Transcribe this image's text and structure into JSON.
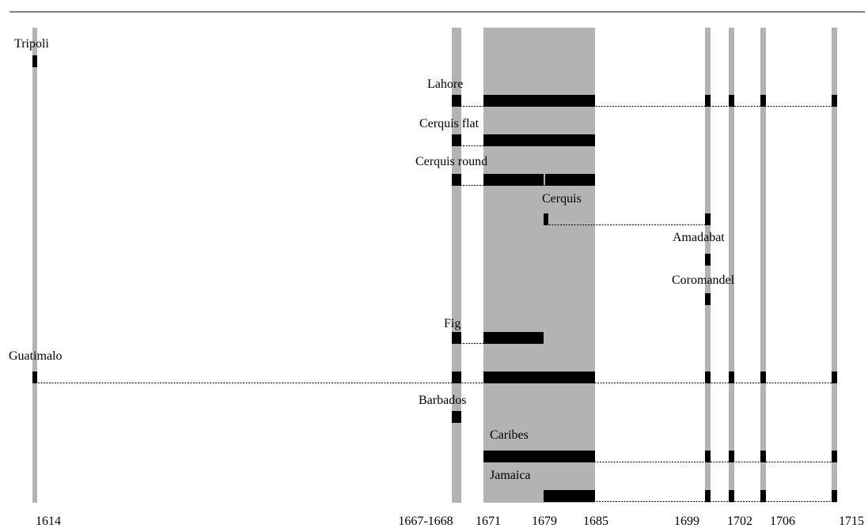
{
  "chart_data": {
    "type": "timeline",
    "colors": {
      "band": "#b3b3b3",
      "mark": "#000000",
      "rule": "#000000"
    },
    "sample_years": [
      "1614",
      "1667-1668",
      "1671",
      "1679",
      "1685",
      "1699",
      "1702",
      "1706",
      "1715"
    ],
    "highlight_period": {
      "from": "1671",
      "to": "1685"
    },
    "series": [
      {
        "name": "Tripoli",
        "present": [
          "1614"
        ]
      },
      {
        "name": "Lahore",
        "present": [
          "1667-1668",
          "1671-1685",
          "1699",
          "1702",
          "1706",
          "1715"
        ]
      },
      {
        "name": "Cerquis flat",
        "present": [
          "1667-1668",
          "1671-1685"
        ]
      },
      {
        "name": "Cerquis round",
        "present": [
          "1667-1668",
          "1671-1679",
          "1679-1685"
        ]
      },
      {
        "name": "Cerquis",
        "present": [
          "1679",
          "1699"
        ]
      },
      {
        "name": "Amadabat",
        "present": [
          "1699"
        ]
      },
      {
        "name": "Coromandel",
        "present": [
          "1699"
        ]
      },
      {
        "name": "Fig",
        "present": [
          "1667-1668",
          "1671-1679"
        ]
      },
      {
        "name": "Guatimalo",
        "present": [
          "1614",
          "1667-1668",
          "1671-1685",
          "1699",
          "1702",
          "1706",
          "1715"
        ]
      },
      {
        "name": "Barbados",
        "present": [
          "1667-1668"
        ]
      },
      {
        "name": "Caribes",
        "present": [
          "1671-1685",
          "1699",
          "1702",
          "1706",
          "1715"
        ]
      },
      {
        "name": "Jamaica",
        "present": [
          "1679-1685",
          "1699",
          "1702",
          "1706",
          "1715"
        ]
      }
    ]
  }
}
